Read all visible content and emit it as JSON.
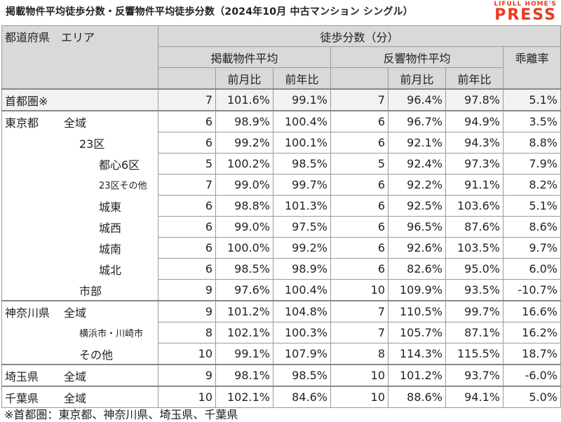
{
  "title": "掲載物件平均徒歩分数・反響物件平均徒歩分数（2024年10月 中古マンション シングル）",
  "logo": {
    "line1": "LIFULL HOME'S",
    "line2": "PRESS"
  },
  "header": {
    "region": "都道府県　エリア",
    "walk": "徒歩分数（分）",
    "listed": "掲載物件平均",
    "response": "反響物件平均",
    "gap": "乖離率",
    "mom": "前月比",
    "yoy": "前年比"
  },
  "rows": [
    {
      "pref": "首都圏※",
      "area": "",
      "l": "7",
      "lm": "101.6%",
      "ly": "99.1%",
      "r": "7",
      "rm": "96.4%",
      "ry": "97.8%",
      "g": "5.1%"
    },
    {
      "pref": "東京都",
      "area": "全域",
      "l": "6",
      "lm": "98.9%",
      "ly": "100.4%",
      "r": "6",
      "rm": "96.7%",
      "ry": "94.9%",
      "g": "3.5%"
    },
    {
      "pref": "",
      "area": "23区",
      "l": "6",
      "lm": "99.2%",
      "ly": "100.1%",
      "r": "6",
      "rm": "92.1%",
      "ry": "94.3%",
      "g": "8.8%"
    },
    {
      "pref": "",
      "area": "都心6区",
      "l": "5",
      "lm": "100.2%",
      "ly": "98.5%",
      "r": "5",
      "rm": "92.4%",
      "ry": "97.3%",
      "g": "7.9%"
    },
    {
      "pref": "",
      "area": "23区その他",
      "l": "7",
      "lm": "99.0%",
      "ly": "99.7%",
      "r": "6",
      "rm": "92.2%",
      "ry": "91.1%",
      "g": "8.2%"
    },
    {
      "pref": "",
      "area": "城東",
      "l": "6",
      "lm": "98.8%",
      "ly": "101.3%",
      "r": "6",
      "rm": "92.5%",
      "ry": "103.6%",
      "g": "5.1%"
    },
    {
      "pref": "",
      "area": "城西",
      "l": "6",
      "lm": "99.0%",
      "ly": "97.5%",
      "r": "6",
      "rm": "96.5%",
      "ry": "87.6%",
      "g": "8.6%"
    },
    {
      "pref": "",
      "area": "城南",
      "l": "6",
      "lm": "100.0%",
      "ly": "99.2%",
      "r": "6",
      "rm": "92.6%",
      "ry": "103.5%",
      "g": "9.7%"
    },
    {
      "pref": "",
      "area": "城北",
      "l": "6",
      "lm": "98.5%",
      "ly": "98.9%",
      "r": "6",
      "rm": "82.6%",
      "ry": "95.0%",
      "g": "6.0%"
    },
    {
      "pref": "",
      "area": "市部",
      "l": "9",
      "lm": "97.6%",
      "ly": "100.4%",
      "r": "10",
      "rm": "109.9%",
      "ry": "93.5%",
      "g": "-10.7%"
    },
    {
      "pref": "神奈川県",
      "area": "全域",
      "l": "9",
      "lm": "101.2%",
      "ly": "104.8%",
      "r": "7",
      "rm": "110.5%",
      "ry": "99.7%",
      "g": "16.6%"
    },
    {
      "pref": "",
      "area": "横浜市・川崎市",
      "l": "8",
      "lm": "102.1%",
      "ly": "100.3%",
      "r": "7",
      "rm": "105.7%",
      "ry": "87.1%",
      "g": "16.2%"
    },
    {
      "pref": "",
      "area": "その他",
      "l": "10",
      "lm": "99.1%",
      "ly": "107.9%",
      "r": "8",
      "rm": "114.3%",
      "ry": "115.5%",
      "g": "18.7%"
    },
    {
      "pref": "埼玉県",
      "area": "全域",
      "l": "9",
      "lm": "98.1%",
      "ly": "98.5%",
      "r": "10",
      "rm": "101.2%",
      "ry": "93.7%",
      "g": "-6.0%"
    },
    {
      "pref": "千葉県",
      "area": "全域",
      "l": "10",
      "lm": "102.1%",
      "ly": "84.6%",
      "r": "10",
      "rm": "88.6%",
      "ry": "94.1%",
      "g": "5.0%"
    }
  ],
  "footnote": "※首都圏：東京都、神奈川県、埼玉県、千葉県"
}
